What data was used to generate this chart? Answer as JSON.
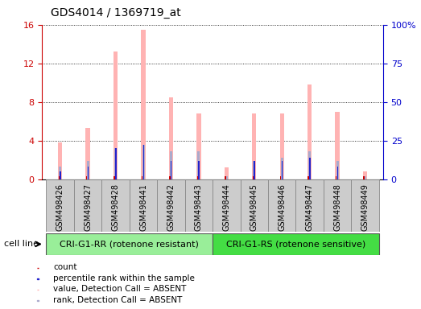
{
  "title": "GDS4014 / 1369719_at",
  "samples": [
    "GSM498426",
    "GSM498427",
    "GSM498428",
    "GSM498441",
    "GSM498442",
    "GSM498443",
    "GSM498444",
    "GSM498445",
    "GSM498446",
    "GSM498447",
    "GSM498448",
    "GSM498449"
  ],
  "value_absent": [
    3.8,
    5.3,
    13.2,
    15.5,
    8.5,
    6.8,
    1.2,
    6.8,
    6.8,
    9.8,
    7.0,
    0.8
  ],
  "rank_absent_pct": [
    8.0,
    12.0,
    20.0,
    22.0,
    18.0,
    18.0,
    2.0,
    12.0,
    14.0,
    18.0,
    12.0,
    2.0
  ],
  "count_values": [
    0.35,
    0.35,
    0.35,
    0.35,
    0.35,
    0.35,
    0.35,
    0.35,
    0.35,
    0.35,
    0.35,
    0.35
  ],
  "rank_values_pct": [
    5.0,
    8.0,
    20.0,
    22.0,
    12.0,
    12.0,
    0.0,
    12.0,
    12.0,
    14.0,
    8.0,
    0.0
  ],
  "ylim_left": [
    0,
    16
  ],
  "ylim_right": [
    0,
    100
  ],
  "yticks_left": [
    0,
    4,
    8,
    12,
    16
  ],
  "ytick_labels_left": [
    "0",
    "4",
    "8",
    "12",
    "16"
  ],
  "yticks_right_pct": [
    0,
    25,
    50,
    75,
    100
  ],
  "ytick_labels_right": [
    "0",
    "25",
    "50",
    "75",
    "100%"
  ],
  "group1_label": "CRI-G1-RR (rotenone resistant)",
  "group2_label": "CRI-G1-RS (rotenone sensitive)",
  "group1_n": 6,
  "group2_n": 6,
  "cell_line_label": "cell line",
  "legend_labels": [
    "count",
    "percentile rank within the sample",
    "value, Detection Call = ABSENT",
    "rank, Detection Call = ABSENT"
  ],
  "bar_width": 0.35,
  "count_color": "#cc0000",
  "rank_color": "#2222cc",
  "value_absent_color": "#ffb3b3",
  "rank_absent_color": "#aaaacc",
  "grid_color": "#000000",
  "bg_color": "#ffffff",
  "group1_bg": "#99ee99",
  "group2_bg": "#44dd44",
  "xlabel_bg": "#cccccc",
  "xlabel_edge": "#888888",
  "left_axis_color": "#cc0000",
  "right_axis_color": "#0000cc",
  "title_fontsize": 10,
  "tick_fontsize": 8,
  "label_fontsize": 8,
  "legend_fontsize": 7.5
}
